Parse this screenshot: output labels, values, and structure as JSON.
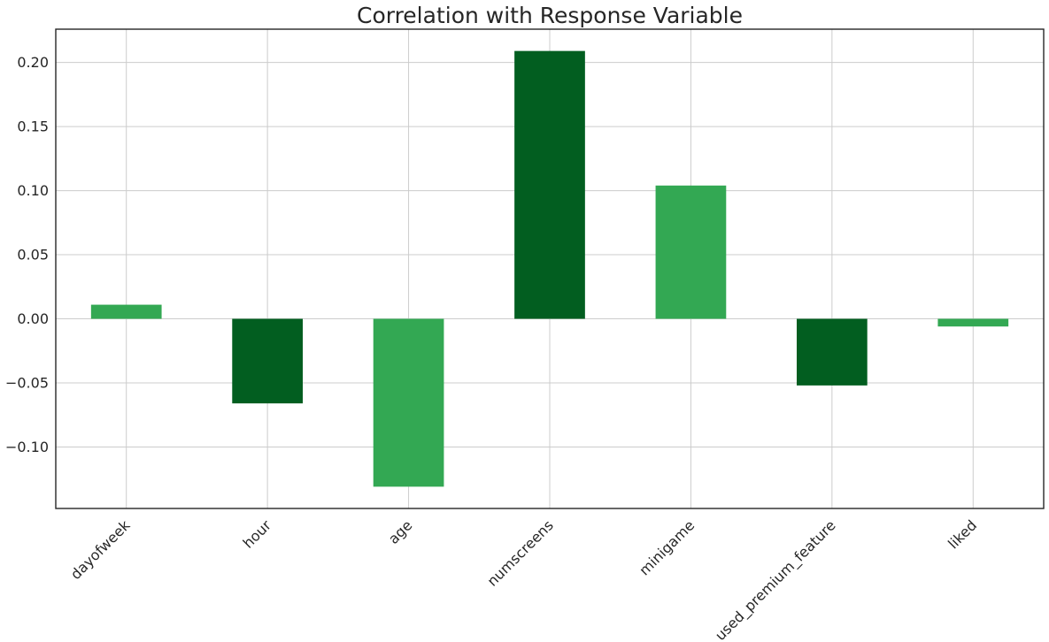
{
  "chart_data": {
    "type": "bar",
    "title": "Correlation with Response Variable",
    "xlabel": "",
    "ylabel": "",
    "categories": [
      "dayofweek",
      "hour",
      "age",
      "numscreens",
      "minigame",
      "used_premium_feature",
      "liked"
    ],
    "values": [
      0.011,
      -0.066,
      -0.131,
      0.209,
      0.104,
      -0.052,
      -0.006
    ],
    "bar_colors": [
      "#33a853",
      "#025e20",
      "#33a853",
      "#025e20",
      "#33a853",
      "#025e20",
      "#33a853"
    ],
    "ylim": [
      -0.148,
      0.226
    ],
    "yticks": [
      -0.1,
      -0.05,
      0.0,
      0.05,
      0.1,
      0.15,
      0.2
    ],
    "ytick_labels": [
      "−0.10",
      "−0.05",
      "0.00",
      "0.05",
      "0.10",
      "0.15",
      "0.20"
    ],
    "grid": true,
    "legend": "none"
  }
}
